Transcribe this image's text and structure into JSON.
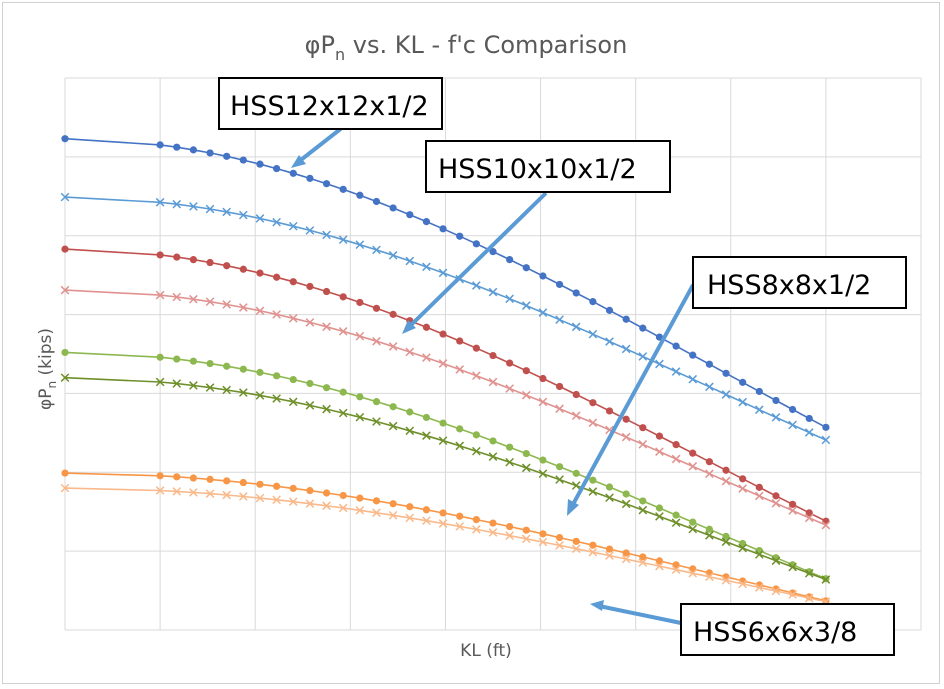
{
  "chart_data": {
    "type": "line",
    "title": "φP",
    "title_sub": "n",
    "title_rest": " vs. KL - f'c Comparison",
    "xlabel": "KL (ft)",
    "ylabel": "φP",
    "ylabel_sub": "n",
    "ylabel_rest": " (kips)",
    "grid": true,
    "xlim": [
      0,
      9
    ],
    "ylim": [
      0,
      7
    ],
    "colors": {
      "blue_dark": "#4472c4",
      "blue_light": "#5b9bd5",
      "red_dark": "#c0504d",
      "red_light": "#e0928f",
      "green_dark": "#8db850",
      "green_light": "#6e8f2a",
      "orange_dark": "#f79646",
      "orange_light": "#f9b98a",
      "arrow": "#5b9bd5"
    },
    "series": [
      {
        "color_key": "blue_dark",
        "marker": "dot",
        "y0": 6.23,
        "yend": 2.57
      },
      {
        "color_key": "blue_light",
        "marker": "x",
        "y0": 5.49,
        "yend": 2.41
      },
      {
        "color_key": "red_dark",
        "marker": "dot",
        "y0": 4.83,
        "yend": 1.38
      },
      {
        "color_key": "red_light",
        "marker": "x",
        "y0": 4.31,
        "yend": 1.33
      },
      {
        "color_key": "green_dark",
        "marker": "dot",
        "y0": 3.52,
        "yend": 0.65
      },
      {
        "color_key": "green_light",
        "marker": "x",
        "y0": 3.2,
        "yend": 0.64
      },
      {
        "color_key": "orange_dark",
        "marker": "dot",
        "y0": 1.99,
        "yend": 0.37
      },
      {
        "color_key": "orange_light",
        "marker": "x",
        "y0": 1.8,
        "yend": 0.36
      }
    ],
    "annotations": [
      {
        "text": "HSS12x12x1/2"
      },
      {
        "text": "HSS10x10x1/2"
      },
      {
        "text": "HSS8x8x1/2"
      },
      {
        "text": "HSS6x6x3/8"
      }
    ]
  }
}
